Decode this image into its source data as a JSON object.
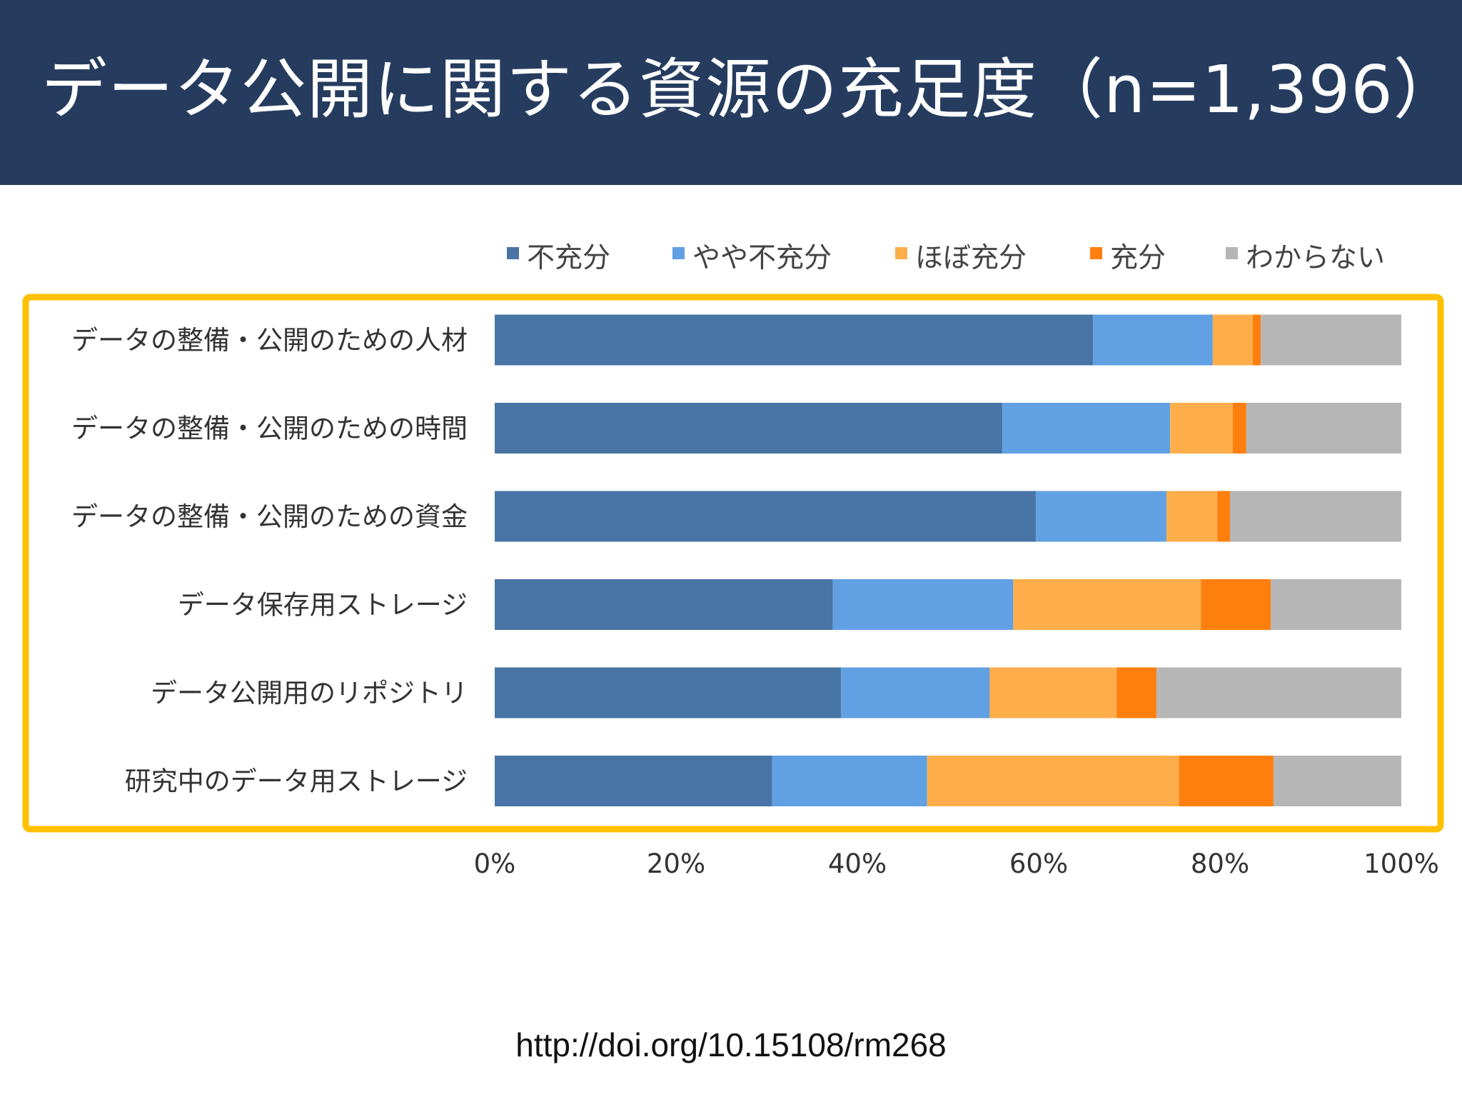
{
  "slide": {
    "title": "データ公開に関する資源の充足度（n=1,396）",
    "source_url": "http://doi.org/10.15108/rm268",
    "header_color": "#263c5f",
    "highlight_color": "#ffc000"
  },
  "chart_data": {
    "type": "bar",
    "orientation": "horizontal",
    "stacked": true,
    "title": "",
    "xlabel": "",
    "ylabel": "",
    "xlim": [
      0,
      100
    ],
    "x_unit": "%",
    "grid": false,
    "legend_position": "top",
    "ticks": [
      "0%",
      "20%",
      "40%",
      "60%",
      "80%",
      "100%"
    ],
    "categories": [
      "データの整備・公開のための人材",
      "データの整備・公開のための時間",
      "データの整備・公開のための資金",
      "データ保存用ストレージ",
      "データ公開用のリポジトリ",
      "研究中のデータ用ストレージ"
    ],
    "series": [
      {
        "name": "不充分",
        "color": "#4874a6",
        "values": [
          66,
          56,
          59.7,
          37.3,
          38.2,
          30.6
        ]
      },
      {
        "name": "やや不充分",
        "color": "#61a0e3",
        "values": [
          13.2,
          18.5,
          14.4,
          19.9,
          16.4,
          17.1
        ]
      },
      {
        "name": "ほぼ充分",
        "color": "#fdae4a",
        "values": [
          4.4,
          6.9,
          5.6,
          20.7,
          14,
          27.8
        ]
      },
      {
        "name": "充分",
        "color": "#fe7f0e",
        "values": [
          0.9,
          1.5,
          1.4,
          7.7,
          4.4,
          10.4
        ]
      },
      {
        "name": "わからない",
        "color": "#b6b6b6",
        "values": [
          15.5,
          17.1,
          18.9,
          14.4,
          27,
          14.1
        ]
      }
    ]
  }
}
